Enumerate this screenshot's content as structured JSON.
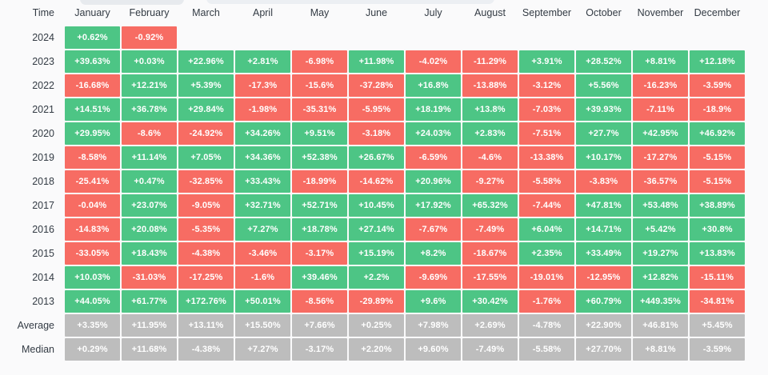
{
  "table": {
    "corner_label": "Time"
  },
  "chart_data": {
    "type": "heatmap",
    "x_categories": [
      "January",
      "February",
      "March",
      "April",
      "May",
      "June",
      "July",
      "August",
      "September",
      "October",
      "November",
      "December"
    ],
    "y_categories": [
      "2024",
      "2023",
      "2022",
      "2021",
      "2020",
      "2019",
      "2018",
      "2017",
      "2016",
      "2015",
      "2014",
      "2013",
      "Average",
      "Median"
    ],
    "rows": [
      {
        "label": "2024",
        "kind": "year",
        "values": [
          "+0.62%",
          "-0.92%",
          "",
          "",
          "",
          "",
          "",
          "",
          "",
          "",
          "",
          ""
        ]
      },
      {
        "label": "2023",
        "kind": "year",
        "values": [
          "+39.63%",
          "+0.03%",
          "+22.96%",
          "+2.81%",
          "-6.98%",
          "+11.98%",
          "-4.02%",
          "-11.29%",
          "+3.91%",
          "+28.52%",
          "+8.81%",
          "+12.18%"
        ]
      },
      {
        "label": "2022",
        "kind": "year",
        "values": [
          "-16.68%",
          "+12.21%",
          "+5.39%",
          "-17.3%",
          "-15.6%",
          "-37.28%",
          "+16.8%",
          "-13.88%",
          "-3.12%",
          "+5.56%",
          "-16.23%",
          "-3.59%"
        ]
      },
      {
        "label": "2021",
        "kind": "year",
        "values": [
          "+14.51%",
          "+36.78%",
          "+29.84%",
          "-1.98%",
          "-35.31%",
          "-5.95%",
          "+18.19%",
          "+13.8%",
          "-7.03%",
          "+39.93%",
          "-7.11%",
          "-18.9%"
        ]
      },
      {
        "label": "2020",
        "kind": "year",
        "values": [
          "+29.95%",
          "-8.6%",
          "-24.92%",
          "+34.26%",
          "+9.51%",
          "-3.18%",
          "+24.03%",
          "+2.83%",
          "-7.51%",
          "+27.7%",
          "+42.95%",
          "+46.92%"
        ]
      },
      {
        "label": "2019",
        "kind": "year",
        "values": [
          "-8.58%",
          "+11.14%",
          "+7.05%",
          "+34.36%",
          "+52.38%",
          "+26.67%",
          "-6.59%",
          "-4.6%",
          "-13.38%",
          "+10.17%",
          "-17.27%",
          "-5.15%"
        ]
      },
      {
        "label": "2018",
        "kind": "year",
        "values": [
          "-25.41%",
          "+0.47%",
          "-32.85%",
          "+33.43%",
          "-18.99%",
          "-14.62%",
          "+20.96%",
          "-9.27%",
          "-5.58%",
          "-3.83%",
          "-36.57%",
          "-5.15%"
        ]
      },
      {
        "label": "2017",
        "kind": "year",
        "values": [
          "-0.04%",
          "+23.07%",
          "-9.05%",
          "+32.71%",
          "+52.71%",
          "+10.45%",
          "+17.92%",
          "+65.32%",
          "-7.44%",
          "+47.81%",
          "+53.48%",
          "+38.89%"
        ]
      },
      {
        "label": "2016",
        "kind": "year",
        "values": [
          "-14.83%",
          "+20.08%",
          "-5.35%",
          "+7.27%",
          "+18.78%",
          "+27.14%",
          "-7.67%",
          "-7.49%",
          "+6.04%",
          "+14.71%",
          "+5.42%",
          "+30.8%"
        ]
      },
      {
        "label": "2015",
        "kind": "year",
        "values": [
          "-33.05%",
          "+18.43%",
          "-4.38%",
          "-3.46%",
          "-3.17%",
          "+15.19%",
          "+8.2%",
          "-18.67%",
          "+2.35%",
          "+33.49%",
          "+19.27%",
          "+13.83%"
        ]
      },
      {
        "label": "2014",
        "kind": "year",
        "values": [
          "+10.03%",
          "-31.03%",
          "-17.25%",
          "-1.6%",
          "+39.46%",
          "+2.2%",
          "-9.69%",
          "-17.55%",
          "-19.01%",
          "-12.95%",
          "+12.82%",
          "-15.11%"
        ]
      },
      {
        "label": "2013",
        "kind": "year",
        "values": [
          "+44.05%",
          "+61.77%",
          "+172.76%",
          "+50.01%",
          "-8.56%",
          "-29.89%",
          "+9.6%",
          "+30.42%",
          "-1.76%",
          "+60.79%",
          "+449.35%",
          "-34.81%"
        ]
      },
      {
        "label": "Average",
        "kind": "summary",
        "values": [
          "+3.35%",
          "+11.95%",
          "+13.11%",
          "+15.50%",
          "+7.66%",
          "+0.25%",
          "+7.98%",
          "+2.69%",
          "-4.78%",
          "+22.90%",
          "+46.81%",
          "+5.45%"
        ]
      },
      {
        "label": "Median",
        "kind": "summary",
        "values": [
          "+0.29%",
          "+11.68%",
          "-4.38%",
          "+7.27%",
          "-3.17%",
          "+2.20%",
          "+9.60%",
          "-7.49%",
          "-5.58%",
          "+27.70%",
          "+8.81%",
          "-3.59%"
        ]
      }
    ],
    "colors": {
      "positive": "#4DC585",
      "negative": "#F76C63",
      "neutral": "#BDBDBD"
    },
    "legend": "none",
    "grid": "off"
  }
}
